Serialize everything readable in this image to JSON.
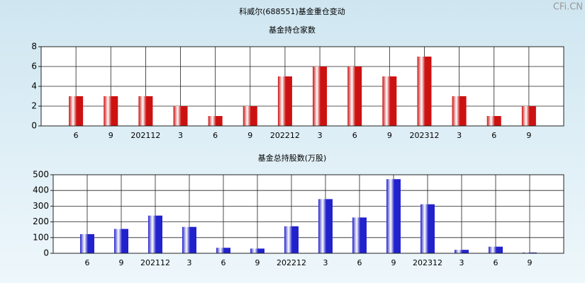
{
  "title": "科威尔(688551)基金重仓变动",
  "watermark": "CFi.CN",
  "chart_data": [
    {
      "type": "bar",
      "title": "基金持仓家数",
      "categories": [
        "6",
        "9",
        "202112",
        "3",
        "6",
        "9",
        "202212",
        "3",
        "6",
        "9",
        "202312",
        "3",
        "6",
        "9"
      ],
      "values": [
        3,
        3,
        3,
        2,
        1,
        2,
        5,
        6,
        6,
        5,
        7,
        3,
        1,
        2
      ],
      "color": "#cc1111",
      "ylim": [
        0,
        8
      ],
      "yticks": [
        0,
        2,
        4,
        6,
        8
      ],
      "grid": true
    },
    {
      "type": "bar",
      "title": "基金总持股数(万股)",
      "categories": [
        "6",
        "9",
        "202112",
        "3",
        "6",
        "9",
        "202212",
        "3",
        "6",
        "9",
        "202312",
        "3",
        "6",
        "9"
      ],
      "values": [
        122,
        155,
        240,
        168,
        35,
        30,
        172,
        345,
        228,
        472,
        312,
        22,
        42,
        5
      ],
      "color": "#2222cc",
      "ylim": [
        0,
        500
      ],
      "yticks": [
        0,
        100,
        200,
        300,
        400,
        500
      ],
      "grid": true
    }
  ]
}
